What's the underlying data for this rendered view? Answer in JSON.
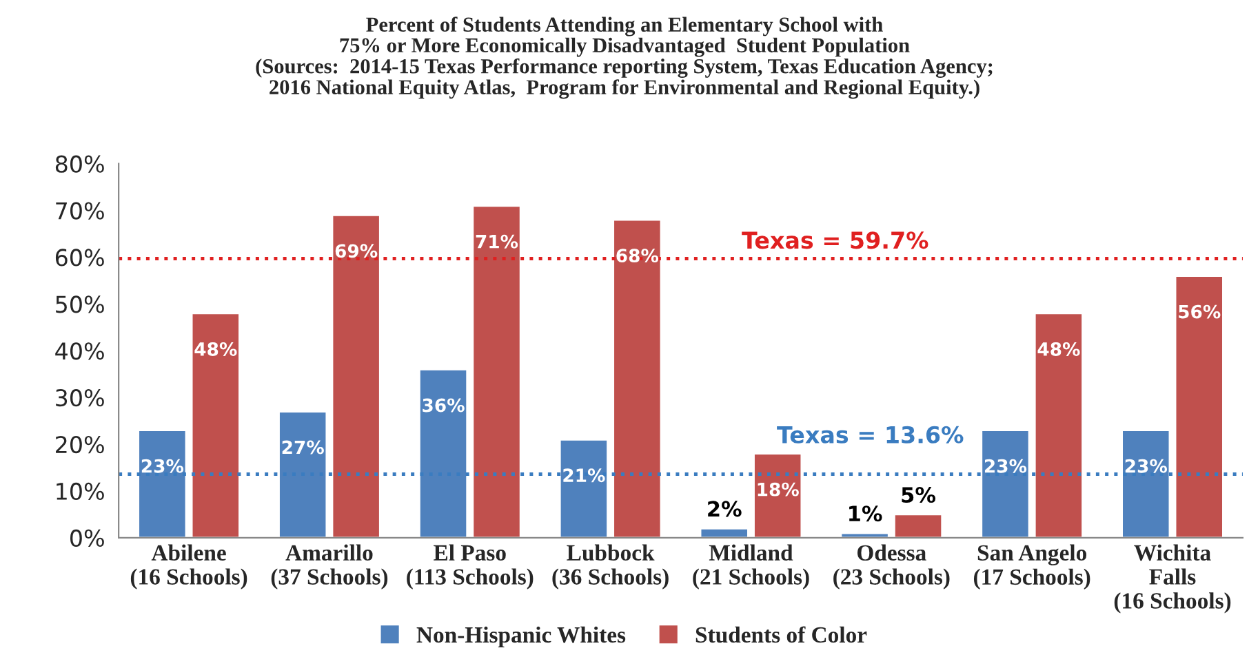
{
  "chart_data": {
    "type": "bar",
    "title": "Percent of Students Attending an Elementary School with\n75% or More Economically Disadvantaged  Student Population\n(Sources:  2014-15 Texas Performance reporting System, Texas Education Agency;\n2016 National Equity Atlas,  Program for Environmental and Regional Equity.)",
    "categories": [
      "Abilene\n(16 Schools)",
      "Amarillo\n(37 Schools)",
      "El Paso\n(113 Schools)",
      "Lubbock\n(36 Schools)",
      "Midland\n(21 Schools)",
      "Odessa\n(23 Schools)",
      "San Angelo\n(17 Schools)",
      "Wichita\nFalls\n(16 Schools)"
    ],
    "series": [
      {
        "name": "Non-Hispanic Whites",
        "color": "#4f81bd",
        "values": [
          23,
          27,
          36,
          21,
          2,
          1,
          23,
          23
        ],
        "value_labels": [
          "23%",
          "27%",
          "36%",
          "21%",
          "2%",
          "1%",
          "23%",
          "23%"
        ]
      },
      {
        "name": "Students of Color",
        "color": "#c0504d",
        "values": [
          48,
          69,
          71,
          68,
          18,
          5,
          48,
          56
        ],
        "value_labels": [
          "48%",
          "69%",
          "71%",
          "68%",
          "18%",
          "5%",
          "48%",
          "56%"
        ]
      }
    ],
    "ylim": [
      0,
      80
    ],
    "yticks": [
      {
        "value": 0,
        "label": "0%"
      },
      {
        "value": 10,
        "label": "10%"
      },
      {
        "value": 20,
        "label": "20%"
      },
      {
        "value": 30,
        "label": "30%"
      },
      {
        "value": 40,
        "label": "40%"
      },
      {
        "value": 50,
        "label": "50%"
      },
      {
        "value": 60,
        "label": "60%"
      },
      {
        "value": 70,
        "label": "70%"
      },
      {
        "value": 80,
        "label": "80%"
      }
    ],
    "ref_lines": [
      {
        "axis": "y",
        "value": 59.7,
        "label": "Texas = 59.7%",
        "color": "#e02020",
        "line_style": "dotted"
      },
      {
        "axis": "y",
        "value": 13.6,
        "label": "Texas = 13.6%",
        "color": "#3a7cc0",
        "line_style": "dotted"
      }
    ],
    "grid": false,
    "legend": "bottom"
  }
}
